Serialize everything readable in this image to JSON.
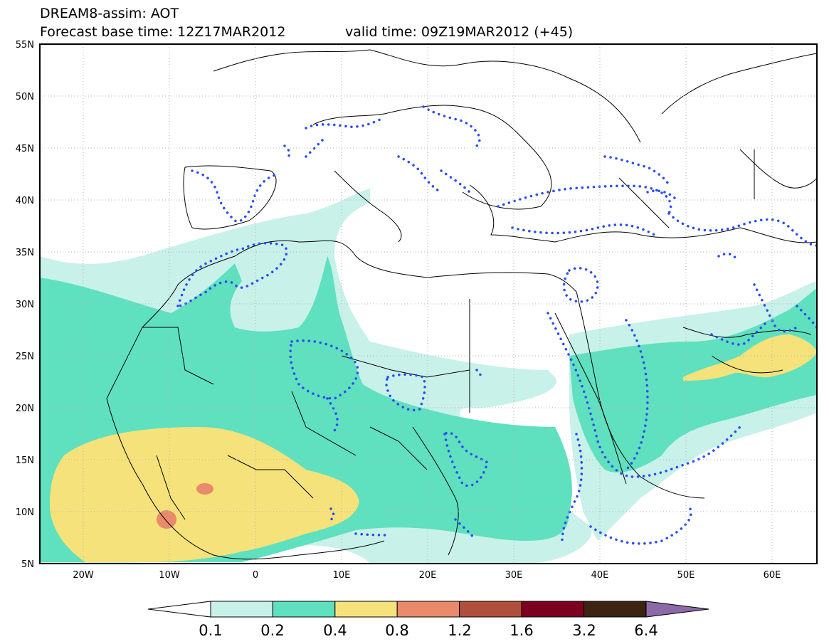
{
  "header": {
    "title": "DREAM8-assim: AOT",
    "forecast_base": "Forecast base time: 12Z17MAR2012",
    "valid_time": "valid time: 09Z19MAR2012 (+45)"
  },
  "map": {
    "lon_range": [
      -25,
      65
    ],
    "lat_range": [
      5,
      55
    ],
    "lat_ticks": [
      "55N",
      "50N",
      "45N",
      "40N",
      "35N",
      "30N",
      "25N",
      "20N",
      "15N",
      "10N",
      "5N"
    ],
    "lon_ticks": [
      "20W",
      "10W",
      "0",
      "10E",
      "20E",
      "30E",
      "40E",
      "50E",
      "60E"
    ],
    "contour_style": "blue dotted (observed/assimilated reference)",
    "colors": {
      "level_0_1": "#c8f1ea",
      "level_0_2": "#5fe0be",
      "level_0_4": "#f5e27a",
      "level_0_8": "#e98a6a",
      "level_1_2": "#b0503c",
      "level_1_6": "#7d0020",
      "level_3_2": "#3d2312",
      "level_6_4": "#8c6aa8",
      "dotted_contour": "#2a4cf0",
      "coastline": "#000000"
    }
  },
  "colorbar": {
    "labels": [
      "0.1",
      "0.2",
      "0.4",
      "0.8",
      "1.2",
      "1.6",
      "3.2",
      "6.4"
    ],
    "colors": [
      "#c8f1ea",
      "#5fe0be",
      "#f5e27a",
      "#e98a6a",
      "#b0503c",
      "#7d0020",
      "#3d2312"
    ],
    "under_color": "#ffffff",
    "over_color": "#8c6aa8"
  }
}
